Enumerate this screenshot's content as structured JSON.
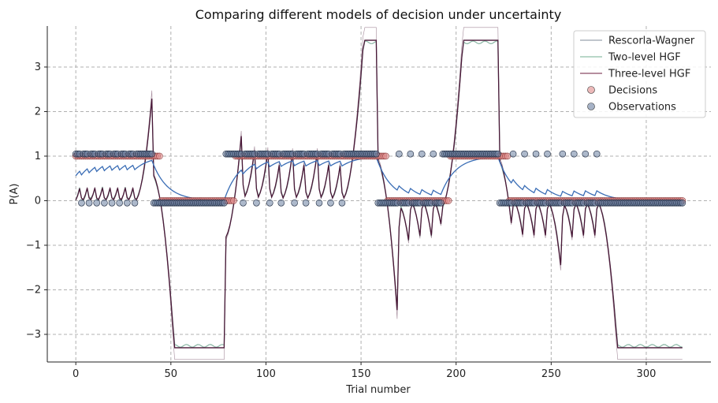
{
  "chart_data": {
    "type": "line",
    "title": "Comparing different models of decision under uncertainty",
    "xlabel": "Trial number",
    "ylabel": "P(A)",
    "xlim": [
      -15,
      334
    ],
    "ylim": [
      -3.62,
      3.92
    ],
    "xticks": [
      0,
      50,
      100,
      150,
      200,
      250,
      300
    ],
    "yticks": [
      3,
      2,
      1,
      0,
      -1,
      -2,
      -3
    ],
    "grid": true,
    "legend_position": "top-right",
    "legend": [
      {
        "label": "Rescorla-Wagner",
        "kind": "line",
        "color": "#9aa3ad"
      },
      {
        "label": "Two-level HGF",
        "kind": "line",
        "color": "#8fbfa8"
      },
      {
        "label": "Three-level HGF",
        "kind": "line",
        "color": "#8a4a66"
      },
      {
        "label": "Decisions",
        "kind": "marker",
        "color": "#e08a8a"
      },
      {
        "label": "Observations",
        "kind": "marker",
        "color": "#6a7fa0"
      }
    ],
    "colors": {
      "rescorla_wagner": "#3a6db5",
      "two_level_hgf": "#5a9a80",
      "three_level_hgf": "#4a1838",
      "decisions": "#e08a8a",
      "observations": "#6a7fa0"
    },
    "observation_blocks": [
      {
        "start": 0,
        "end": 40,
        "value": 1
      },
      {
        "start": 41,
        "end": 78,
        "value": 0
      },
      {
        "start": 79,
        "end": 158,
        "value": 1
      },
      {
        "start": 159,
        "end": 192,
        "value": 0
      },
      {
        "start": 193,
        "end": 222,
        "value": 1
      },
      {
        "start": 223,
        "end": 290,
        "value": 0
      },
      {
        "start": 291,
        "end": 319,
        "value": 0
      }
    ],
    "n_trials": 320
  }
}
